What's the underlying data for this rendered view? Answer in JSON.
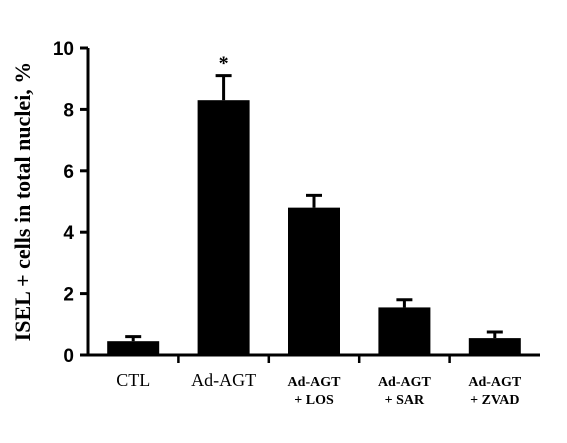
{
  "chart_data": {
    "type": "bar",
    "categories": [
      [
        "CTL"
      ],
      [
        "Ad-AGT"
      ],
      [
        "Ad-AGT",
        "+ LOS"
      ],
      [
        "Ad-AGT",
        "+ SAR"
      ],
      [
        "Ad-AGT",
        "+ ZVAD"
      ]
    ],
    "values": [
      0.45,
      8.3,
      4.8,
      1.55,
      0.55
    ],
    "errors": [
      0.15,
      0.8,
      0.4,
      0.25,
      0.2
    ],
    "annotations": [
      "",
      "*",
      "",
      "",
      ""
    ],
    "ylabel": "ISEL + cells in total nuclei, %",
    "xlabel": "",
    "title": "",
    "ylim": [
      0,
      10
    ],
    "yticks": [
      "0",
      "2",
      "4",
      "6",
      "8",
      "10"
    ],
    "bar_color": "#000000",
    "grid": false,
    "legend": "none"
  }
}
